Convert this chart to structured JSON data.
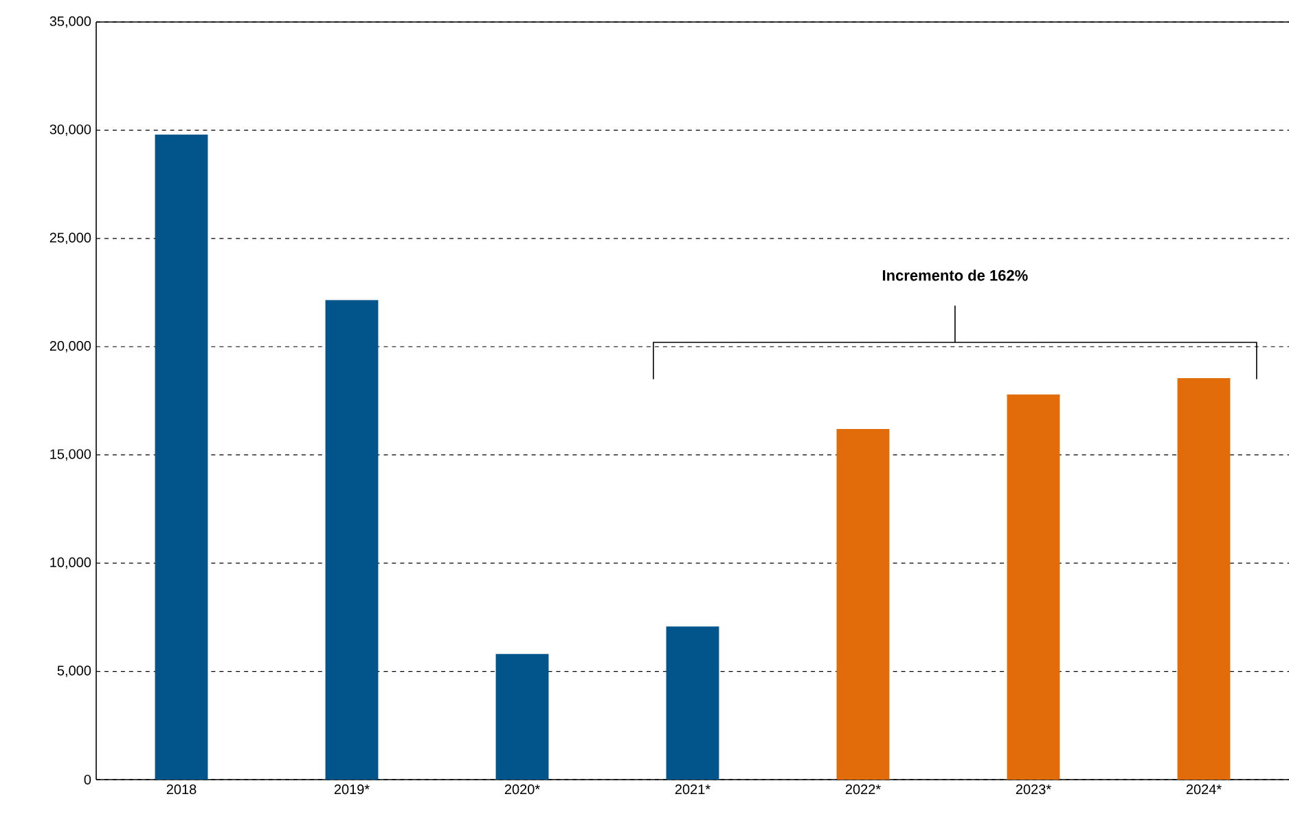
{
  "chart_data": {
    "type": "bar",
    "categories": [
      "2018",
      "2019*",
      "2020*",
      "2021*",
      "2022*",
      "2023*",
      "2024*"
    ],
    "values": [
      29800,
      22150,
      5800,
      7070,
      16200,
      17790,
      18550
    ],
    "colors": [
      "#02558b",
      "#02558b",
      "#02558b",
      "#02558b",
      "#e36c0a",
      "#e36c0a",
      "#e36c0a"
    ],
    "ylim": [
      0,
      35000
    ],
    "yticks": [
      0,
      {
        "value": 5000,
        "label": "5,000"
      },
      {
        "value": 10000,
        "label": "10,000"
      },
      {
        "value": 15000,
        "label": "15,000"
      },
      {
        "value": 20000,
        "label": "20,000"
      },
      {
        "value": 25000,
        "label": "25,000"
      },
      {
        "value": 30000,
        "label": "30,000"
      },
      {
        "value": 35000,
        "label": "35,000"
      }
    ],
    "grid": "y",
    "annotations": [
      "**Incremento de 162%**"
    ]
  }
}
